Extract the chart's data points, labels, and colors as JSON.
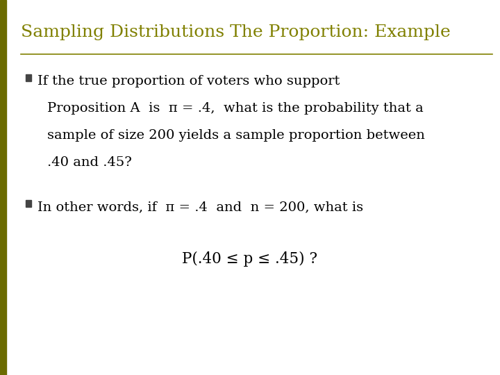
{
  "title": "Sampling Distributions The Proportion: Example",
  "title_color": "#808000",
  "title_fontsize": 18,
  "background_color": "#FFFFFF",
  "left_bar_color": "#6B6B00",
  "separator_color": "#808000",
  "body_color": "#000000",
  "body_fontsize": 14,
  "bullet_color": "#444444",
  "bullet1_line1": "If the true proportion of voters who support",
  "bullet1_line2": "Proposition A  is  π = .4,  what is the probability that a",
  "bullet1_line3": "sample of size 200 yields a sample proportion between",
  "bullet1_line4": ".40 and .45?",
  "bullet2_line1": "In other words, if  π = .4  and  n = 200, what is",
  "centered_formula": "P(.40 ≤ p ≤ .45) ?"
}
